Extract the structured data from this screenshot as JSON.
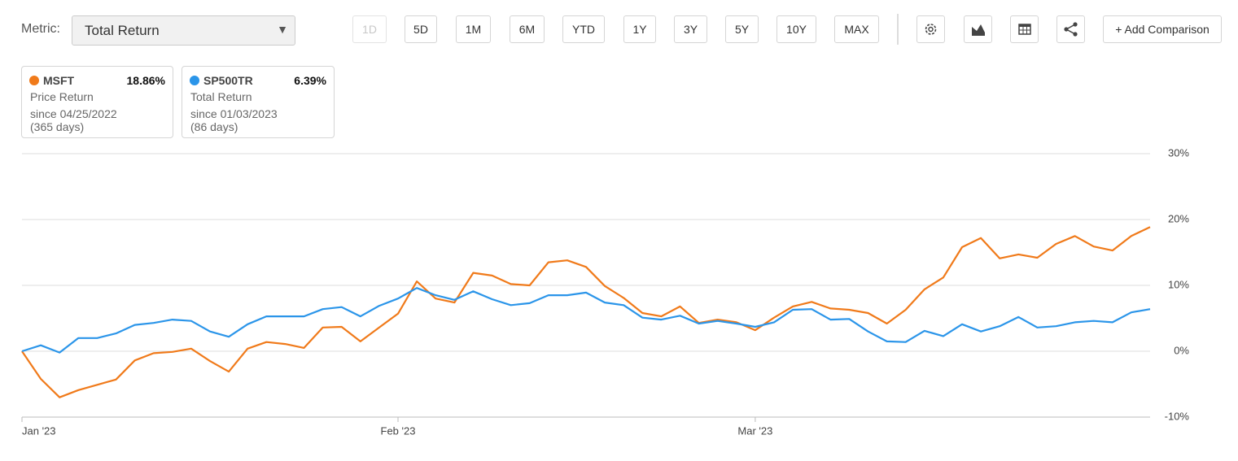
{
  "toolbar": {
    "metric_label": "Metric:",
    "metric_value": "Total Return",
    "ranges": [
      "1D",
      "5D",
      "1M",
      "6M",
      "YTD",
      "1Y",
      "3Y",
      "5Y",
      "10Y",
      "MAX"
    ],
    "add_comparison": "+ Add Comparison"
  },
  "legend_cards": [
    {
      "change": "18.86%",
      "metric": "Price Return",
      "since": "since 04/25/2022",
      "days": "(365 days)"
    },
    {
      "change": "6.39%",
      "metric": "Total Return",
      "since": "since 01/03/2023",
      "days": "(86 days)"
    }
  ],
  "chart_data": {
    "type": "line",
    "categories": [
      "Jan '23",
      null,
      null,
      null,
      null,
      null,
      null,
      null,
      null,
      null,
      null,
      null,
      null,
      null,
      null,
      null,
      null,
      null,
      null,
      null,
      "Feb '23",
      null,
      null,
      null,
      null,
      null,
      null,
      null,
      null,
      null,
      null,
      null,
      null,
      null,
      null,
      null,
      null,
      null,
      null,
      "Mar '23",
      null,
      null,
      null,
      null,
      null,
      null,
      null,
      null,
      null,
      null,
      null,
      null,
      null,
      null,
      null,
      null,
      null,
      null,
      null,
      null,
      null
    ],
    "series": [
      {
        "name": "MSFT",
        "color": "#f07a1a",
        "values": [
          0,
          -4.2,
          -7.0,
          -5.9,
          -5.1,
          -4.3,
          -1.4,
          -0.3,
          -0.1,
          0.4,
          -1.5,
          -3.1,
          0.4,
          1.4,
          1.1,
          0.5,
          3.6,
          3.7,
          1.5,
          3.6,
          5.7,
          10.6,
          8.0,
          7.4,
          11.9,
          11.5,
          10.2,
          10.0,
          13.5,
          13.8,
          12.8,
          9.9,
          8.1,
          5.8,
          5.3,
          6.8,
          4.3,
          4.8,
          4.4,
          3.2,
          5.1,
          6.8,
          7.5,
          6.5,
          6.3,
          5.8,
          4.2,
          6.3,
          9.4,
          11.2,
          15.8,
          17.2,
          14.1,
          14.7,
          14.2,
          16.3,
          17.5,
          15.9,
          15.3,
          17.5,
          18.86
        ]
      },
      {
        "name": "SP500TR",
        "color": "#2b95e9",
        "values": [
          0,
          0.9,
          -0.2,
          2.0,
          2.0,
          2.7,
          4.0,
          4.3,
          4.8,
          4.6,
          3.0,
          2.2,
          4.1,
          5.3,
          5.3,
          5.3,
          6.4,
          6.7,
          5.3,
          6.9,
          8.0,
          9.6,
          8.5,
          7.8,
          9.1,
          7.9,
          7.0,
          7.3,
          8.5,
          8.5,
          8.9,
          7.4,
          7.0,
          5.1,
          4.8,
          5.4,
          4.2,
          4.6,
          4.2,
          3.7,
          4.4,
          6.3,
          6.4,
          4.8,
          4.9,
          3.0,
          1.5,
          1.4,
          3.1,
          2.3,
          4.1,
          3.0,
          3.8,
          5.2,
          3.6,
          3.8,
          4.4,
          4.6,
          4.4,
          5.9,
          6.39
        ]
      }
    ],
    "ylim": [
      -10,
      30
    ],
    "yticks": [
      {
        "value": -10,
        "label": "-10%"
      },
      {
        "value": 0,
        "label": "0%"
      },
      {
        "value": 10,
        "label": "10%"
      },
      {
        "value": 20,
        "label": "20%"
      },
      {
        "value": 30,
        "label": "30%"
      }
    ],
    "grid": true
  }
}
